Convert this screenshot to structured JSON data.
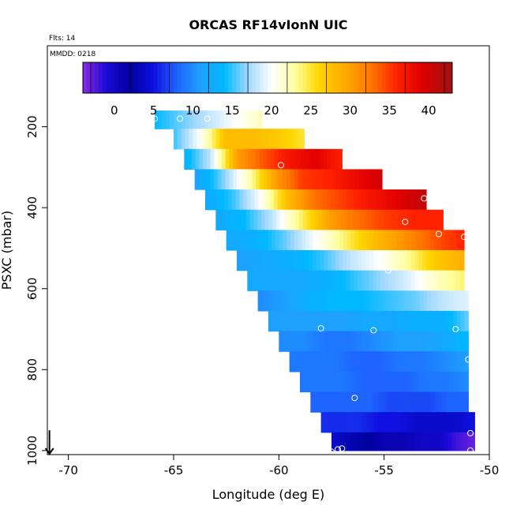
{
  "chart_data": {
    "type": "heatmap",
    "title": "ORCAS RF14vIonN UIC",
    "flights_note": "Flts: 14",
    "date_note": "MMDD: 0218",
    "xlabel": "Longitude (deg E)",
    "ylabel": "PSXC (mbar)",
    "xlim": [
      -71,
      -50
    ],
    "ylim": [
      1010,
      0
    ],
    "x_ticks": [
      -70,
      -65,
      -60,
      -55,
      -50
    ],
    "y_ticks": [
      200,
      400,
      600,
      800,
      1000
    ],
    "colorbar": {
      "range": [
        -4,
        43
      ],
      "ticks": [
        0,
        5,
        10,
        15,
        20,
        25,
        30,
        35,
        40
      ]
    },
    "palette": {
      "stops": [
        [
          -4,
          "#8a2be2"
        ],
        [
          -1,
          "#1a0ad6"
        ],
        [
          2,
          "#0000a0"
        ],
        [
          5,
          "#1010e0"
        ],
        [
          8,
          "#1e64ff"
        ],
        [
          11,
          "#1ea0ff"
        ],
        [
          14,
          "#00b8ff"
        ],
        [
          17,
          "#a0d8ff"
        ],
        [
          20,
          "#ffffff"
        ],
        [
          23,
          "#ffffa0"
        ],
        [
          26,
          "#ffd700"
        ],
        [
          30,
          "#ffa000"
        ],
        [
          33,
          "#ff7000"
        ],
        [
          36,
          "#ff2000"
        ],
        [
          39,
          "#e00000"
        ],
        [
          43,
          "#a01010"
        ]
      ],
      "point_marker_color": "#ffffff",
      "arrow_color": "#000000"
    },
    "layers": [
      {
        "p": 180,
        "lon_range": [
          -65.9,
          -60.8
        ],
        "values": [
          14,
          16,
          18,
          20,
          22
        ]
      },
      {
        "p": 230,
        "lon_range": [
          -65.0,
          -58.8
        ],
        "values": [
          15,
          20,
          28,
          28,
          27,
          25
        ]
      },
      {
        "p": 280,
        "lon_range": [
          -64.5,
          -57.0
        ],
        "values": [
          13,
          18,
          30,
          34,
          37,
          39,
          36
        ]
      },
      {
        "p": 330,
        "lon_range": [
          -64.0,
          -55.1
        ],
        "values": [
          11,
          16,
          22,
          30,
          35,
          36,
          38,
          40
        ]
      },
      {
        "p": 380,
        "lon_range": [
          -63.5,
          -53.0
        ],
        "values": [
          12,
          15,
          20,
          28,
          33,
          35,
          37,
          39,
          41
        ]
      },
      {
        "p": 430,
        "lon_range": [
          -63.0,
          -52.2
        ],
        "values": [
          12,
          14,
          18,
          24,
          30,
          33,
          35,
          36,
          36
        ]
      },
      {
        "p": 480,
        "lon_range": [
          -62.5,
          -51.2
        ],
        "values": [
          12,
          13,
          16,
          20,
          24,
          28,
          31,
          34,
          36
        ]
      },
      {
        "p": 530,
        "lon_range": [
          -62.0,
          -51.2
        ],
        "values": [
          11,
          12,
          13,
          15,
          18,
          20,
          23,
          27,
          29
        ]
      },
      {
        "p": 580,
        "lon_range": [
          -61.5,
          -51.2
        ],
        "values": [
          12,
          12,
          12,
          13,
          15,
          17,
          19,
          22,
          24
        ]
      },
      {
        "p": 630,
        "lon_range": [
          -61.0,
          -51.0
        ],
        "values": [
          10,
          11,
          13,
          14,
          14,
          15,
          16,
          18,
          19
        ]
      },
      {
        "p": 680,
        "lon_range": [
          -60.5,
          -51.0
        ],
        "values": [
          11,
          11,
          11,
          11,
          12,
          12,
          13,
          13,
          16
        ]
      },
      {
        "p": 730,
        "lon_range": [
          -60.0,
          -51.0
        ],
        "values": [
          10,
          10,
          9,
          9,
          10,
          11,
          11,
          12,
          14
        ]
      },
      {
        "p": 780,
        "lon_range": [
          -59.5,
          -51.0
        ],
        "values": [
          9,
          9,
          9,
          8,
          8,
          9,
          9,
          10,
          11
        ]
      },
      {
        "p": 830,
        "lon_range": [
          -59.0,
          -51.0
        ],
        "values": [
          9,
          9,
          9,
          8,
          8,
          8,
          9,
          9,
          10
        ]
      },
      {
        "p": 880,
        "lon_range": [
          -58.5,
          -51.0
        ],
        "values": [
          8,
          8,
          8,
          8,
          7,
          7,
          7,
          8,
          8
        ]
      },
      {
        "p": 930,
        "lon_range": [
          -58.0,
          -50.7
        ],
        "values": [
          6,
          6,
          6,
          5,
          5,
          4,
          4,
          4,
          5
        ]
      },
      {
        "p": 980,
        "lon_range": [
          -57.5,
          -50.7
        ],
        "values": [
          4,
          3,
          2,
          1,
          1,
          0,
          0,
          -2,
          -3
        ]
      }
    ],
    "points": [
      {
        "lon": -65.9,
        "p": 180
      },
      {
        "lon": -64.7,
        "p": 180
      },
      {
        "lon": -63.4,
        "p": 180
      },
      {
        "lon": -62.1,
        "p": 180
      },
      {
        "lon": -59.9,
        "p": 295
      },
      {
        "lon": -53.1,
        "p": 377
      },
      {
        "lon": -54.0,
        "p": 435
      },
      {
        "lon": -52.4,
        "p": 465
      },
      {
        "lon": -51.2,
        "p": 472
      },
      {
        "lon": -54.8,
        "p": 555
      },
      {
        "lon": -58.0,
        "p": 698
      },
      {
        "lon": -55.5,
        "p": 703
      },
      {
        "lon": -51.6,
        "p": 700
      },
      {
        "lon": -51.0,
        "p": 775
      },
      {
        "lon": -56.4,
        "p": 870
      },
      {
        "lon": -50.9,
        "p": 957
      },
      {
        "lon": -57.0,
        "p": 995
      },
      {
        "lon": -57.2,
        "p": 997
      },
      {
        "lon": -57.5,
        "p": 1003
      },
      {
        "lon": -50.9,
        "p": 1000
      }
    ],
    "arrow": {
      "lon": -70.9,
      "p_from": 950,
      "p_to": 1010
    }
  }
}
